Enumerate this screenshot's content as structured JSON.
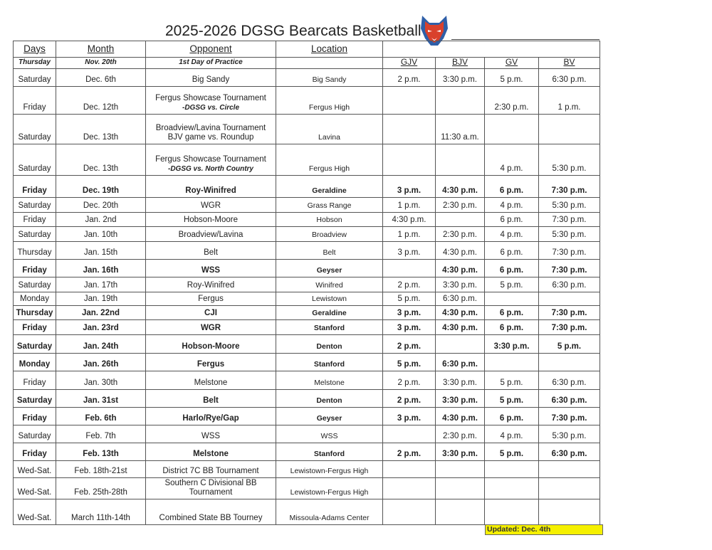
{
  "title": "2025-2026 DGSG Bearcats Basketball",
  "logo_icon": "bearcat-mascot-icon",
  "headers": {
    "days": "Days",
    "month": "Month",
    "opponent": "Opponent",
    "location": "Location"
  },
  "teams": [
    "GJV",
    "BJV",
    "GV",
    "BV"
  ],
  "practice": {
    "day": "Thursday",
    "date": "Nov. 20th",
    "event": "1st Day of Practice"
  },
  "games": [
    {
      "day": "Saturday",
      "date": "Dec. 6th",
      "opponent": "Big Sandy",
      "sub": "",
      "location": "Big Sandy",
      "times": [
        "2 p.m.",
        "3:30 p.m.",
        "5 p.m.",
        "6:30 p.m."
      ],
      "bold": false
    },
    {
      "day": "Friday",
      "date": "Dec. 12th",
      "opponent": "Fergus Showcase Tournament",
      "sub": "-DGSG vs. Circle",
      "location": "Fergus High",
      "times": [
        "",
        "",
        "2:30 p.m.",
        "1 p.m."
      ],
      "bold": false
    },
    {
      "day": "Saturday",
      "date": "Dec. 13th",
      "opponent": "Broadview/Lavina Tournament",
      "opponent2": "BJV game vs. Roundup",
      "sub": "",
      "location": "Lavina",
      "times": [
        "",
        "11:30 a.m.",
        "",
        ""
      ],
      "bold": false
    },
    {
      "day": "Saturday",
      "date": "Dec. 13th",
      "opponent": "Fergus Showcase Tournament",
      "sub": "-DGSG vs. North Country",
      "location": "Fergus High",
      "times": [
        "",
        "",
        "4 p.m.",
        "5:30 p.m."
      ],
      "bold": false
    },
    {
      "day": "Friday",
      "date": "Dec. 19th",
      "opponent": "Roy-Winifred",
      "sub": "",
      "location": "Geraldine",
      "times": [
        "3 p.m.",
        "4:30 p.m.",
        "6 p.m.",
        "7:30 p.m."
      ],
      "bold": true
    },
    {
      "day": "Saturday",
      "date": "Dec. 20th",
      "opponent": "WGR",
      "sub": "",
      "location": "Grass Range",
      "times": [
        "1 p.m.",
        "2:30 p.m.",
        "4 p.m.",
        "5:30 p.m."
      ],
      "bold": false
    },
    {
      "day": "Friday",
      "date": "Jan. 2nd",
      "opponent": "Hobson-Moore",
      "sub": "",
      "location": "Hobson",
      "times": [
        "4:30 p.m.",
        "",
        "6 p.m.",
        "7:30 p.m."
      ],
      "bold": false
    },
    {
      "day": "Saturday",
      "date": "Jan. 10th",
      "opponent": "Broadview/Lavina",
      "sub": "",
      "location": "Broadview",
      "times": [
        "1 p.m.",
        "2:30 p.m.",
        "4 p.m.",
        "5:30 p.m."
      ],
      "bold": false
    },
    {
      "day": "Thursday",
      "date": "Jan. 15th",
      "opponent": "Belt",
      "sub": "",
      "location": "Belt",
      "times": [
        "3 p.m.",
        "4:30 p.m.",
        "6 p.m.",
        "7:30 p.m."
      ],
      "bold": false
    },
    {
      "day": "Friday",
      "date": "Jan. 16th",
      "opponent": "WSS",
      "sub": "",
      "location": "Geyser",
      "times": [
        "",
        "4:30 p.m.",
        "6 p.m.",
        "7:30 p.m."
      ],
      "bold": true
    },
    {
      "day": "Saturday",
      "date": "Jan. 17th",
      "opponent": "Roy-Winifred",
      "sub": "",
      "location": "Winifred",
      "times": [
        "2 p.m.",
        "3:30 p.m.",
        "5 p.m.",
        "6:30 p.m."
      ],
      "bold": false
    },
    {
      "day": "Monday",
      "date": "Jan. 19th",
      "opponent": "Fergus",
      "sub": "",
      "location": "Lewistown",
      "times": [
        "5 p.m.",
        "6:30 p.m.",
        "",
        ""
      ],
      "bold": false
    },
    {
      "day": "Thursday",
      "date": "Jan. 22nd",
      "opponent": "CJI",
      "sub": "",
      "location": "Geraldine",
      "times": [
        "3 p.m.",
        "4:30 p.m.",
        "6 p.m.",
        "7:30 p.m."
      ],
      "bold": true
    },
    {
      "day": "Friday",
      "date": "Jan. 23rd",
      "opponent": "WGR",
      "sub": "",
      "location": "Stanford",
      "times": [
        "3 p.m.",
        "4:30 p.m.",
        "6 p.m.",
        "7:30 p.m."
      ],
      "bold": true
    },
    {
      "day": "Saturday",
      "date": "Jan. 24th",
      "opponent": "Hobson-Moore",
      "sub": "",
      "location": "Denton",
      "times": [
        "2 p.m.",
        "",
        "3:30 p.m.",
        "5 p.m."
      ],
      "bold": true
    },
    {
      "day": "Monday",
      "date": "Jan. 26th",
      "opponent": "Fergus",
      "sub": "",
      "location": "Stanford",
      "times": [
        "5 p.m.",
        "6:30 p.m.",
        "",
        ""
      ],
      "bold": true
    },
    {
      "day": "Friday",
      "date": "Jan. 30th",
      "opponent": "Melstone",
      "sub": "",
      "location": "Melstone",
      "times": [
        "2 p.m.",
        "3:30 p.m.",
        "5 p.m.",
        "6:30 p.m."
      ],
      "bold": false
    },
    {
      "day": "Saturday",
      "date": "Jan. 31st",
      "opponent": "Belt",
      "sub": "",
      "location": "Denton",
      "times": [
        "2 p.m.",
        "3:30 p.m.",
        "5 p.m.",
        "6:30 p.m."
      ],
      "bold": true
    },
    {
      "day": "Friday",
      "date": "Feb. 6th",
      "opponent": "Harlo/Rye/Gap",
      "sub": "",
      "location": "Geyser",
      "times": [
        "3 p.m.",
        "4:30 p.m.",
        "6 p.m.",
        "7:30 p.m."
      ],
      "bold": true
    },
    {
      "day": "Saturday",
      "date": "Feb. 7th",
      "opponent": "WSS",
      "sub": "",
      "location": "WSS",
      "times": [
        "",
        "2:30 p.m.",
        "4 p.m.",
        "5:30 p.m."
      ],
      "bold": false
    },
    {
      "day": "Friday",
      "date": "Feb. 13th",
      "opponent": "Melstone",
      "sub": "",
      "location": "Stanford",
      "times": [
        "2 p.m.",
        "3:30 p.m.",
        "5 p.m.",
        "6:30 p.m."
      ],
      "bold": true
    },
    {
      "day": "Wed-Sat.",
      "date": "Feb. 18th-21st",
      "opponent": "District 7C BB Tournament",
      "sub": "",
      "location": "Lewistown-Fergus High",
      "times": [
        "",
        "",
        "",
        ""
      ],
      "bold": false
    },
    {
      "day": "Wed-Sat.",
      "date": "Feb. 25th-28th",
      "opponent": "Southern C Divisional BB",
      "opponent2": "Tournament",
      "sub": "",
      "location": "Lewistown-Fergus High",
      "times": [
        "",
        "",
        "",
        ""
      ],
      "bold": false
    },
    {
      "day": "Wed-Sat.",
      "date": "March 11th-14th",
      "opponent": "Combined State BB Tourney",
      "sub": "",
      "location": "Missoula-Adams Center",
      "times": [
        "",
        "",
        "",
        ""
      ],
      "bold": false
    }
  ],
  "updated": "Updated: Dec.  4th",
  "colors": {
    "updated_bg": "#f5f000",
    "logo_red": "#d9412c",
    "logo_blue": "#2e5fa8"
  }
}
